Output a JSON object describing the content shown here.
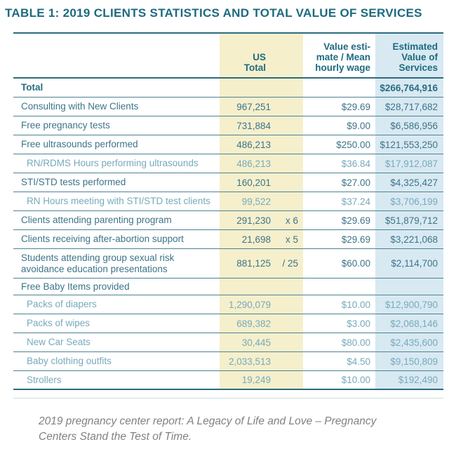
{
  "title": "TABLE 1: 2019 CLIENTS STATISTICS AND TOTAL VALUE OF SERVICES",
  "table": {
    "columns": {
      "us_header": [
        "US",
        "Total"
      ],
      "value_header": [
        "Value esti-",
        "mate / Mean",
        "hourly wage"
      ],
      "estimated_header": [
        "Estimated",
        "Value of",
        "Services"
      ]
    },
    "rows": [
      {
        "label": "Total",
        "style": "total",
        "us": "",
        "mult": "",
        "value": "",
        "estimated": "$266,764,916"
      },
      {
        "label": "Consulting with New Clients",
        "style": "main",
        "us": "967,251",
        "mult": "",
        "value": "$29.69",
        "estimated": "$28,717,682"
      },
      {
        "label": "Free pregnancy tests",
        "style": "main",
        "us": "731,884",
        "mult": "",
        "value": "$9.00",
        "estimated": "$6,586,956"
      },
      {
        "label": "Free ultrasounds performed",
        "style": "main",
        "us": "486,213",
        "mult": "",
        "value": "$250.00",
        "estimated": "$121,553,250"
      },
      {
        "label": "RN/RDMS Hours performing ultrasounds",
        "style": "sub",
        "us": "486,213",
        "mult": "",
        "value": "$36.84",
        "estimated": "$17,912,087"
      },
      {
        "label": "STI/STD tests performed",
        "style": "main",
        "us": "160,201",
        "mult": "",
        "value": "$27.00",
        "estimated": "$4,325,427"
      },
      {
        "label": "RN Hours meeting with STI/STD test clients",
        "style": "sub",
        "us": "99,522",
        "mult": "",
        "value": "$37.24",
        "estimated": "$3,706,199"
      },
      {
        "label": "Clients attending parenting program",
        "style": "main",
        "us": "291,230",
        "mult": "x 6",
        "value": "$29.69",
        "estimated": "$51,879,712"
      },
      {
        "label": "Clients receiving after-abortion support",
        "style": "main",
        "us": "21,698",
        "mult": "x 5",
        "value": "$29.69",
        "estimated": "$3,221,068"
      },
      {
        "label": "Students attending group sexual risk avoidance education presentations",
        "style": "tall",
        "us": "881,125",
        "mult": "/ 25",
        "value": "$60.00",
        "estimated": "$2,114,700"
      },
      {
        "label": "Free Baby Items provided",
        "style": "section",
        "us": "",
        "mult": "",
        "value": "",
        "estimated": ""
      },
      {
        "label": "Packs of diapers",
        "style": "sub",
        "us": "1,290,079",
        "mult": "",
        "value": "$10.00",
        "estimated": "$12,900,790"
      },
      {
        "label": "Packs of wipes",
        "style": "sub",
        "us": "689,382",
        "mult": "",
        "value": "$3.00",
        "estimated": "$2,068,146"
      },
      {
        "label": "New Car Seats",
        "style": "sub",
        "us": "30,445",
        "mult": "",
        "value": "$80.00",
        "estimated": "$2,435,600"
      },
      {
        "label": "Baby clothing outfits",
        "style": "sub",
        "us": "2,033,513",
        "mult": "",
        "value": "$4.50",
        "estimated": "$9,150,809"
      },
      {
        "label": "Strollers",
        "style": "sub",
        "us": "19,249",
        "mult": "",
        "value": "$10.00",
        "estimated": "$192,490"
      }
    ]
  },
  "caption": "2019 pregnancy center report: A Legacy of Life and Love – Pregnancy Centers Stand the Test of Time.",
  "colors": {
    "title_teal": "#1d6a80",
    "main_text_teal": "#3d7489",
    "sub_text_teal": "#76aabc",
    "us_column_bg": "#f5efcc",
    "estimated_column_bg": "#d8e9f2",
    "rule_light": "#4d8293",
    "rule_heavy": "#2d6b7e",
    "caption_gray": "#818181"
  }
}
